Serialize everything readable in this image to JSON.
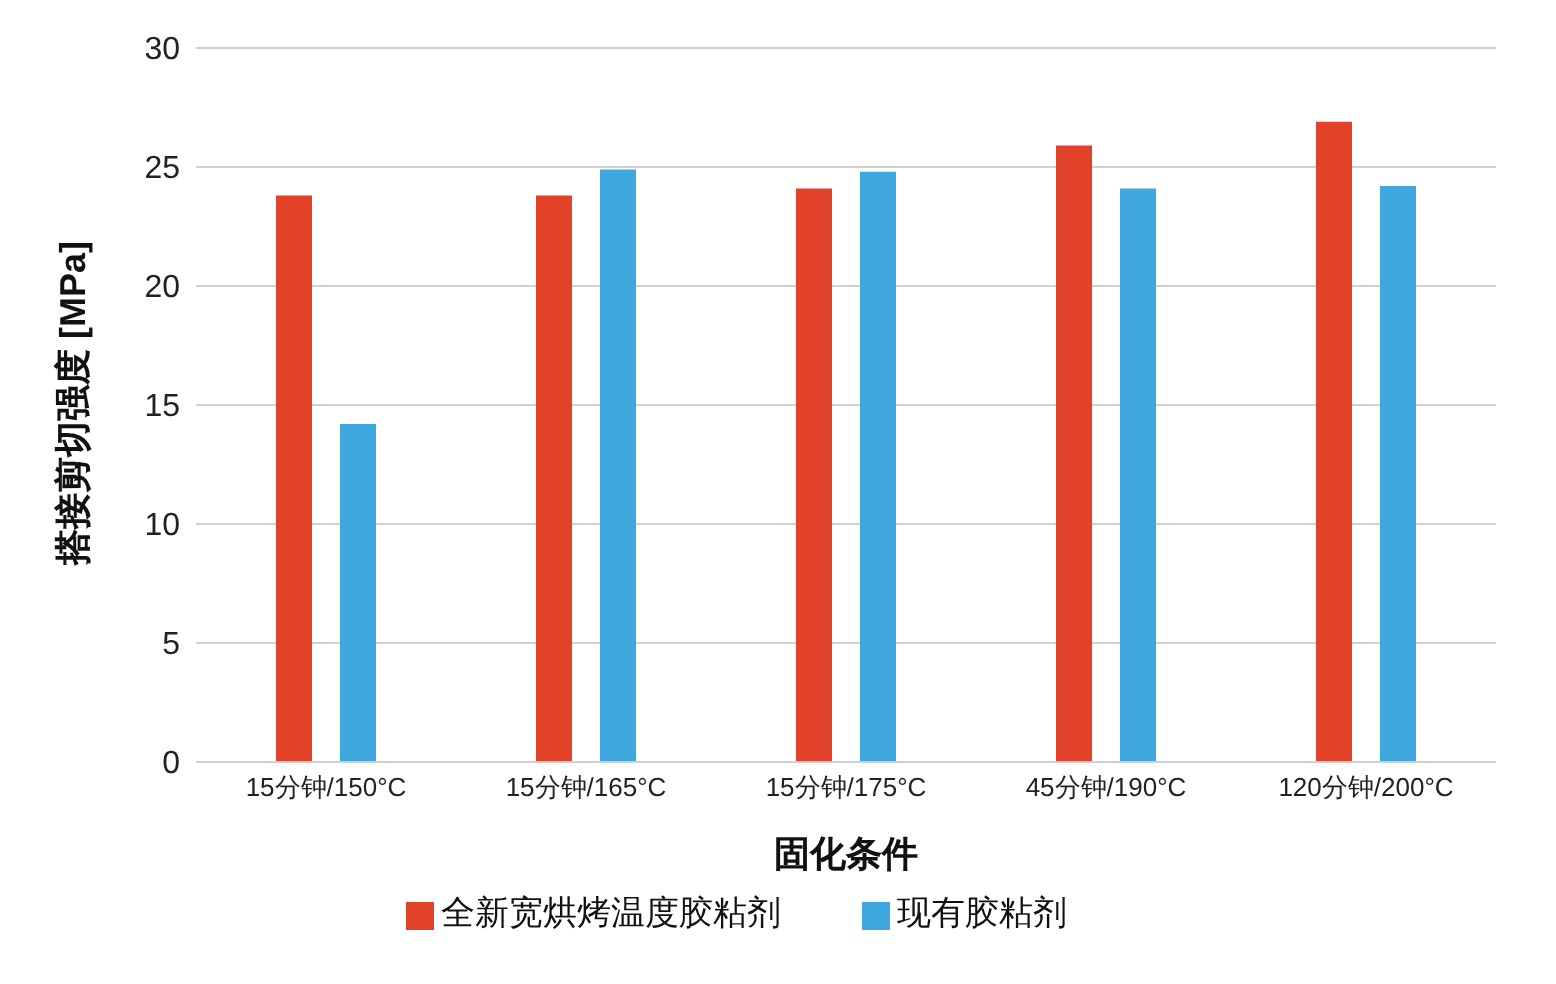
{
  "chart_data": {
    "type": "bar",
    "xlabel": "固化条件",
    "ylabel": "搭接剪切强度 [MPa]",
    "categories": [
      "15分钟/150°C",
      "15分钟/165°C",
      "15分钟/175°C",
      "45分钟/190°C",
      "120分钟/200°C"
    ],
    "series": [
      {
        "name": "全新宽烘烤温度胶粘剂",
        "color": "#e2412a",
        "values": [
          23.8,
          23.8,
          24.1,
          25.9,
          26.9
        ]
      },
      {
        "name": "现有胶粘剂",
        "color": "#3ea8df",
        "values": [
          14.2,
          24.9,
          24.8,
          24.1,
          24.2
        ]
      }
    ],
    "ylim": [
      0,
      30
    ],
    "yticks": [
      0,
      5,
      10,
      15,
      20,
      25,
      30
    ],
    "grid": "y",
    "legend": "bottom"
  }
}
